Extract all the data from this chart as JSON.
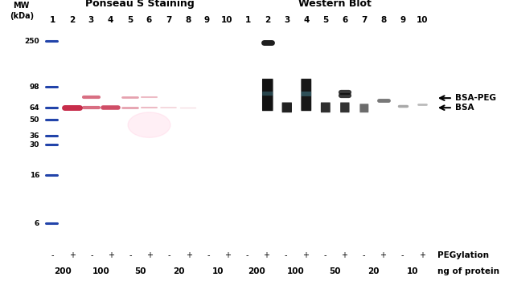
{
  "title_left": "Ponseau S Staining",
  "title_right": "Western Blot",
  "mw_ticks": [
    250,
    98,
    64,
    50,
    36,
    30,
    16,
    6
  ],
  "lane_numbers": [
    "1",
    "2",
    "3",
    "4",
    "5",
    "6",
    "7",
    "8",
    "9",
    "10"
  ],
  "pegylation_labels": [
    "-",
    "+",
    "-",
    "+",
    "-",
    "+",
    "-",
    "+",
    "-",
    "+"
  ],
  "ng_labels": [
    "200",
    "100",
    "50",
    "20",
    "10"
  ],
  "ng_of_protein": "ng of protein",
  "pegylation": "PEGylation",
  "annotation_bsapeg": "BSA-PEG",
  "annotation_bsa": "BSA",
  "left_bg": "#f7ccd3",
  "right_bg": "#5ab8d0",
  "ladder_color": "#2244aa",
  "ponseau_band_color": "#c42040",
  "wb_band_color": "#0a0a0a",
  "fig_bg": "#ffffff",
  "mw_min": 4,
  "mw_max": 300
}
